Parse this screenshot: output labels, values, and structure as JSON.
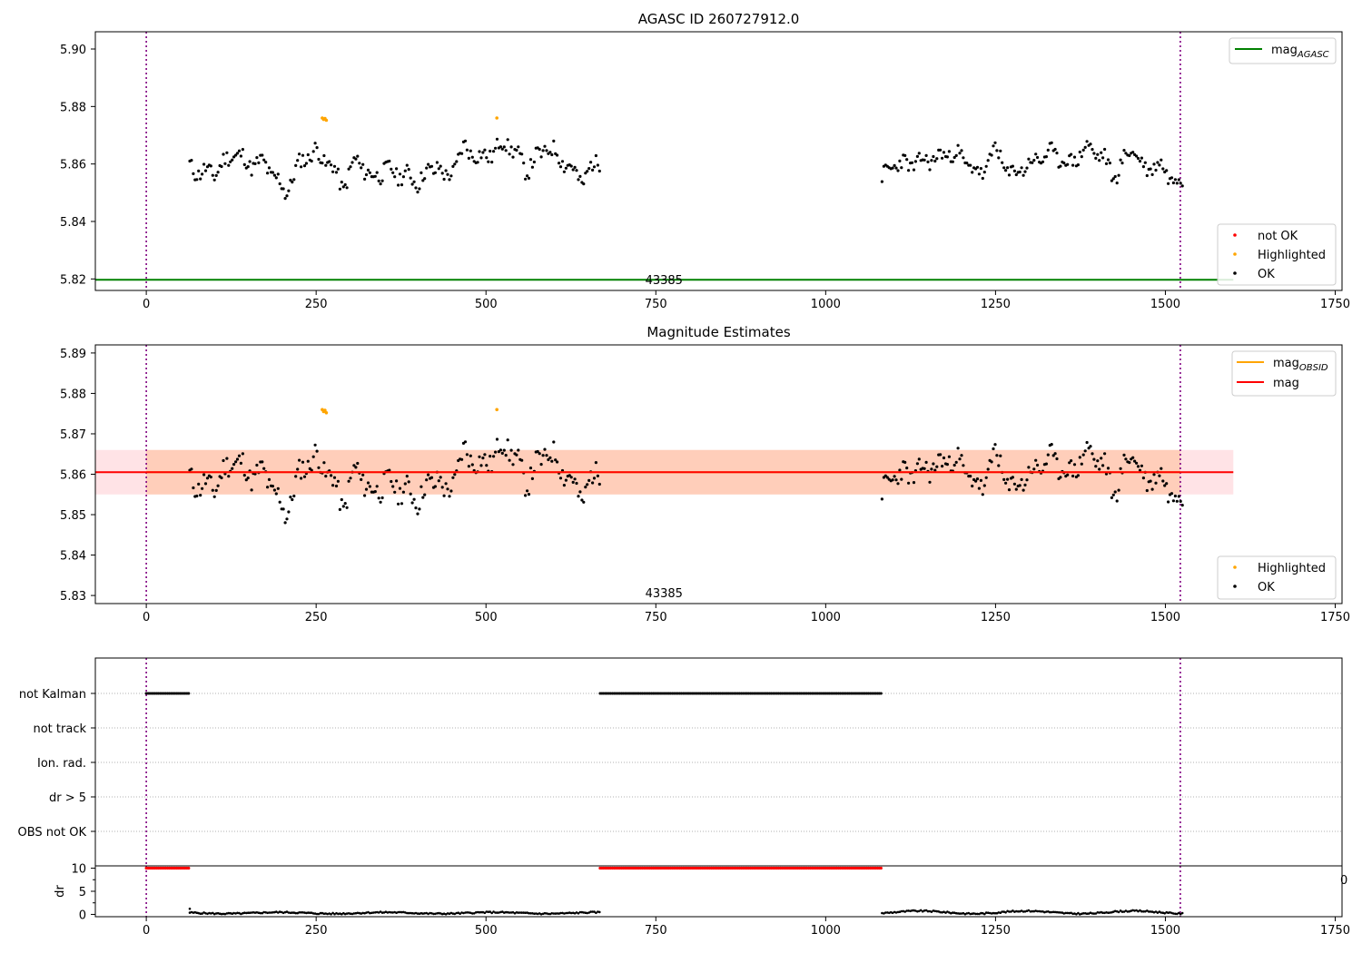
{
  "chart_data": [
    {
      "type": "scatter",
      "title": "AGASC ID 260727912.0",
      "xlim": [
        -75,
        1760
      ],
      "ylim": [
        5.816,
        5.906
      ],
      "xticks": [
        0,
        250,
        500,
        750,
        1000,
        1250,
        1500,
        1750
      ],
      "yticks": [
        "5.82",
        "5.84",
        "5.86",
        "5.88",
        "5.90"
      ],
      "grid": false,
      "vlines": [
        0,
        1522
      ],
      "annotation": {
        "text": "43385",
        "x": 762,
        "y": 5.8195
      },
      "mag_agasc": {
        "name": "mag",
        "subscript": "AGASC",
        "value": 5.8197,
        "x_range": [
          -75,
          1600
        ],
        "color": "#008000"
      },
      "legend_top": {
        "placement": "top-right",
        "entries": [
          {
            "name": "mag",
            "subscript": "AGASC",
            "color": "#008000"
          }
        ]
      },
      "legend_bottom": {
        "placement": "bottom-right",
        "entries": [
          {
            "name": "not OK",
            "color": "#ff0000"
          },
          {
            "name": "Highlighted",
            "color": "#ffa500"
          },
          {
            "name": "OK",
            "color": "#000000"
          }
        ]
      },
      "series": [
        {
          "name": "OK",
          "color": "#000000",
          "segments": [
            {
              "x_start": 64,
              "x_end": 668,
              "step": 2.6,
              "base": 5.86,
              "amp": 0.0045,
              "noise": 0.0028,
              "seed": 11,
              "anchors": [
                [
                  64,
                  5.859
                ],
                [
                  80,
                  5.857
                ],
                [
                  100,
                  5.857
                ],
                [
                  130,
                  5.864
                ],
                [
                  150,
                  5.86
                ],
                [
                  175,
                  5.86
                ],
                [
                  205,
                  5.85
                ],
                [
                  230,
                  5.862
                ],
                [
                  250,
                  5.864
                ],
                [
                  270,
                  5.86
                ],
                [
                  290,
                  5.852
                ],
                [
                  310,
                  5.862
                ],
                [
                  330,
                  5.855
                ],
                [
                  350,
                  5.858
                ],
                [
                  380,
                  5.856
                ],
                [
                  400,
                  5.854
                ],
                [
                  430,
                  5.86
                ],
                [
                  440,
                  5.854
                ],
                [
                  470,
                  5.866
                ],
                [
                  490,
                  5.862
                ],
                [
                  510,
                  5.864
                ],
                [
                  530,
                  5.868
                ],
                [
                  560,
                  5.858
                ],
                [
                  590,
                  5.866
                ],
                [
                  620,
                  5.86
                ],
                [
                  640,
                  5.854
                ],
                [
                  668,
                  5.862
                ]
              ]
            },
            {
              "x_start": 1083,
              "x_end": 1525,
              "step": 2.6,
              "base": 5.86,
              "amp": 0.004,
              "noise": 0.0025,
              "seed": 23,
              "anchors": [
                [
                  1083,
                  5.855
                ],
                [
                  1100,
                  5.86
                ],
                [
                  1130,
                  5.86
                ],
                [
                  1160,
                  5.862
                ],
                [
                  1190,
                  5.864
                ],
                [
                  1210,
                  5.86
                ],
                [
                  1230,
                  5.856
                ],
                [
                  1250,
                  5.866
                ],
                [
                  1270,
                  5.856
                ],
                [
                  1300,
                  5.86
                ],
                [
                  1330,
                  5.864
                ],
                [
                  1360,
                  5.86
                ],
                [
                  1385,
                  5.866
                ],
                [
                  1410,
                  5.862
                ],
                [
                  1425,
                  5.855
                ],
                [
                  1450,
                  5.866
                ],
                [
                  1470,
                  5.858
                ],
                [
                  1490,
                  5.86
                ],
                [
                  1510,
                  5.855
                ],
                [
                  1525,
                  5.854
                ]
              ]
            }
          ]
        },
        {
          "name": "Highlighted",
          "color": "#ffa500",
          "points": [
            [
              259,
              5.876
            ],
            [
              261,
              5.8755
            ],
            [
              263,
              5.8758
            ],
            [
              265,
              5.8752
            ],
            [
              516,
              5.876
            ]
          ]
        }
      ]
    },
    {
      "type": "scatter",
      "title": "Magnitude Estimates",
      "xlim": [
        -75,
        1760
      ],
      "ylim": [
        5.828,
        5.892
      ],
      "xticks": [
        0,
        250,
        500,
        750,
        1000,
        1250,
        1500,
        1750
      ],
      "yticks": [
        "5.83",
        "5.84",
        "5.85",
        "5.86",
        "5.87",
        "5.88",
        "5.89"
      ],
      "grid": false,
      "vlines": [
        0,
        1522
      ],
      "annotation": {
        "text": "43385",
        "x": 762,
        "y": 5.8305
      },
      "mag": {
        "value": 5.8605,
        "x_range": [
          -75,
          1600
        ],
        "color": "#ff0000"
      },
      "mag_band": {
        "low": 5.855,
        "high": 5.866,
        "x_range": [
          -75,
          1600
        ],
        "color": "#ffb0b8"
      },
      "obsid_band": {
        "low": 5.855,
        "high": 5.866,
        "x_range": [
          0,
          1522
        ],
        "color": "#ffa566"
      },
      "legend_top": {
        "placement": "top-right",
        "entries": [
          {
            "name": "mag",
            "subscript": "OBSID",
            "color": "#ffa500"
          },
          {
            "name": "mag",
            "subscript": "",
            "color": "#ff0000"
          }
        ]
      },
      "legend_bottom": {
        "placement": "bottom-right",
        "entries": [
          {
            "name": "Highlighted",
            "color": "#ffa500"
          },
          {
            "name": "OK",
            "color": "#000000"
          }
        ]
      }
    },
    {
      "type": "scatter",
      "title": "",
      "xlim": [
        -75,
        1760
      ],
      "categories": [
        "not Kalman",
        "not track",
        "Ion. rad.",
        "dr > 5",
        "OBS not OK"
      ],
      "flag_ranges": [
        {
          "category": "not Kalman",
          "ranges": [
            [
              0,
              64
            ],
            [
              668,
              1083
            ]
          ],
          "step": 2.6,
          "color": "#000000"
        }
      ],
      "vlines": [
        0,
        1522
      ]
    },
    {
      "type": "scatter",
      "title": "",
      "ylabel": "dr",
      "xlim": [
        -75,
        1760
      ],
      "ylim": [
        -0.5,
        10.5
      ],
      "xticks": [
        0,
        250,
        500,
        750,
        1000,
        1250,
        1500,
        1750
      ],
      "yticks": [
        "0",
        "5",
        "10"
      ],
      "vlines": [
        0,
        1522
      ],
      "clipped_label": "0",
      "capped": {
        "value": 10,
        "ranges": [
          [
            0,
            64
          ],
          [
            668,
            1083
          ]
        ],
        "step": 2.6,
        "color": "#ff0000"
      },
      "series": [
        {
          "name": "dr",
          "color": "#000000",
          "segments": [
            {
              "x_start": 64,
              "x_end": 668,
              "step": 2.6,
              "base": 0.3,
              "amp": 0.15,
              "noise": 0.15,
              "seed": 5
            },
            {
              "x_start": 1083,
              "x_end": 1525,
              "step": 2.6,
              "base": 0.45,
              "amp": 0.3,
              "noise": 0.15,
              "seed": 9
            }
          ],
          "points": [
            [
              64,
              1.2
            ]
          ]
        }
      ]
    }
  ]
}
